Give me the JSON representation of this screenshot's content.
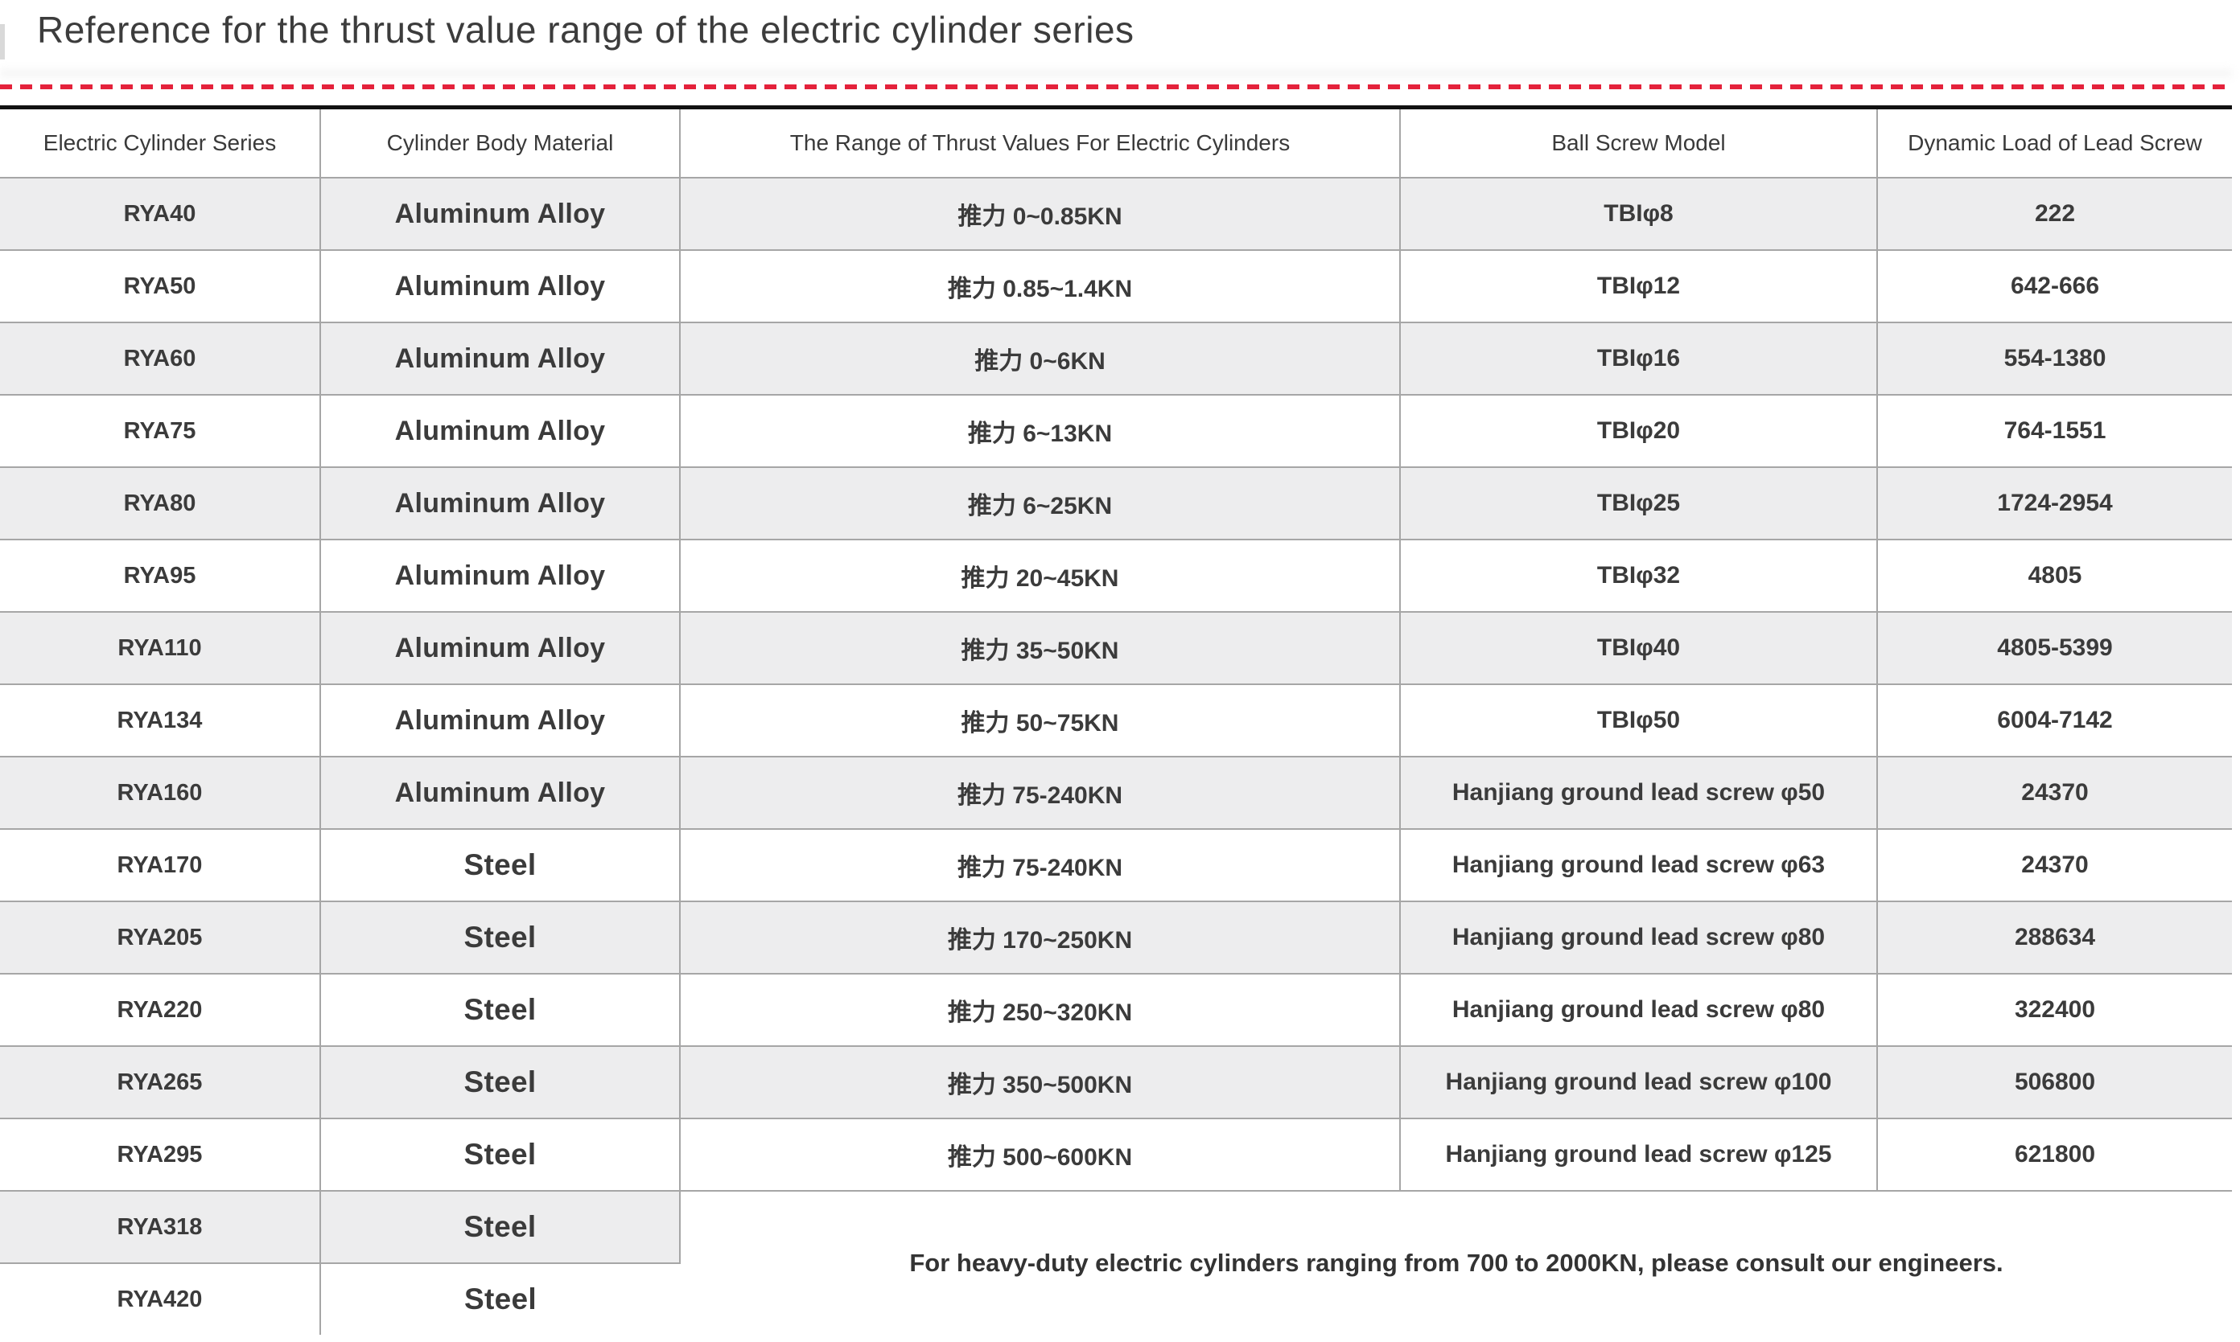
{
  "page": {
    "title": "Reference for the thrust value range of the electric cylinder series"
  },
  "colors": {
    "accent_red": "#e4223b",
    "table_top_border": "#111111",
    "row_stripe": "#ededee",
    "grid_line": "#a6a6a6",
    "text": "#3b3b3b"
  },
  "table": {
    "headers": [
      "Electric Cylinder Series",
      "Cylinder Body Material",
      "The Range of Thrust Values For Electric Cylinders",
      "Ball Screw Model",
      "Dynamic Load of Lead Screw"
    ],
    "rows": [
      {
        "series": "RYA40",
        "material": "Aluminum Alloy",
        "thrust": "推力 0~0.85KN",
        "screw": "TBIφ8",
        "load": "222"
      },
      {
        "series": "RYA50",
        "material": "Aluminum Alloy",
        "thrust": "推力 0.85~1.4KN",
        "screw": "TBIφ12",
        "load": "642-666"
      },
      {
        "series": "RYA60",
        "material": "Aluminum Alloy",
        "thrust": "推力 0~6KN",
        "screw": "TBIφ16",
        "load": "554-1380"
      },
      {
        "series": "RYA75",
        "material": "Aluminum Alloy",
        "thrust": "推力 6~13KN",
        "screw": "TBIφ20",
        "load": "764-1551"
      },
      {
        "series": "RYA80",
        "material": "Aluminum Alloy",
        "thrust": "推力 6~25KN",
        "screw": "TBIφ25",
        "load": "1724-2954"
      },
      {
        "series": "RYA95",
        "material": "Aluminum Alloy",
        "thrust": "推力 20~45KN",
        "screw": "TBIφ32",
        "load": "4805"
      },
      {
        "series": "RYA110",
        "material": "Aluminum Alloy",
        "thrust": "推力 35~50KN",
        "screw": "TBIφ40",
        "load": "4805-5399"
      },
      {
        "series": "RYA134",
        "material": "Aluminum Alloy",
        "thrust": "推力 50~75KN",
        "screw": "TBIφ50",
        "load": "6004-7142"
      },
      {
        "series": "RYA160",
        "material": "Aluminum Alloy",
        "thrust": "推力 75-240KN",
        "screw": "Hanjiang ground lead screw φ50",
        "load": "24370"
      },
      {
        "series": "RYA170",
        "material": "Steel",
        "thrust": "推力 75-240KN",
        "screw": "Hanjiang ground lead screw φ63",
        "load": "24370"
      },
      {
        "series": "RYA205",
        "material": "Steel",
        "thrust": "推力 170~250KN",
        "screw": "Hanjiang ground lead screw φ80",
        "load": "288634"
      },
      {
        "series": "RYA220",
        "material": "Steel",
        "thrust": "推力 250~320KN",
        "screw": "Hanjiang ground lead screw φ80",
        "load": "322400"
      },
      {
        "series": "RYA265",
        "material": "Steel",
        "thrust": "推力 350~500KN",
        "screw": "Hanjiang ground lead screw φ100",
        "load": "506800"
      },
      {
        "series": "RYA295",
        "material": "Steel",
        "thrust": "推力 500~600KN",
        "screw": "Hanjiang ground lead screw φ125",
        "load": "621800"
      },
      {
        "series": "RYA318",
        "material": "Steel"
      },
      {
        "series": "RYA420",
        "material": "Steel"
      }
    ],
    "note": "For heavy-duty electric cylinders ranging from 700 to 2000KN, please consult our engineers."
  }
}
